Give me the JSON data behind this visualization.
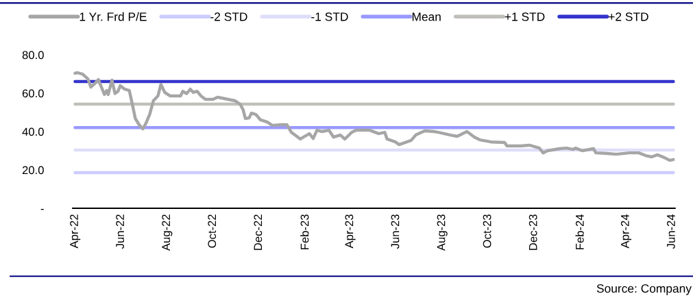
{
  "chart_data": {
    "type": "line",
    "series": [
      {
        "name": "1 Yr. Frd P/E",
        "color": "#a6a6a6",
        "x": [
          "2022-04-01",
          "2022-04-04",
          "2022-04-11",
          "2022-04-18",
          "2022-04-22",
          "2022-04-26",
          "2022-05-02",
          "2022-05-06",
          "2022-05-10",
          "2022-05-13",
          "2022-05-15",
          "2022-05-20",
          "2022-05-24",
          "2022-05-28",
          "2022-05-31",
          "2022-06-06",
          "2022-06-12",
          "2022-06-15",
          "2022-06-20",
          "2022-06-25",
          "2022-06-30",
          "2022-07-04",
          "2022-07-09",
          "2022-07-14",
          "2022-07-20",
          "2022-07-24",
          "2022-07-29",
          "2022-08-05",
          "2022-08-13",
          "2022-08-19",
          "2022-08-22",
          "2022-08-27",
          "2022-09-01",
          "2022-09-05",
          "2022-09-10",
          "2022-09-15",
          "2022-09-21",
          "2022-10-01",
          "2022-10-07",
          "2022-10-12",
          "2022-10-21",
          "2022-10-30",
          "2022-11-06",
          "2022-11-10",
          "2022-11-13",
          "2022-11-18",
          "2022-11-21",
          "2022-11-27",
          "2022-12-03",
          "2022-12-12",
          "2022-12-19",
          "2022-12-30",
          "2023-01-07",
          "2023-01-13",
          "2023-01-19",
          "2023-01-25",
          "2023-01-29",
          "2023-02-06",
          "2023-02-11",
          "2023-02-16",
          "2023-02-23",
          "2023-03-04",
          "2023-03-10",
          "2023-03-19",
          "2023-03-25",
          "2023-04-03",
          "2023-04-09",
          "2023-04-27",
          "2023-05-09",
          "2023-05-17",
          "2023-05-20",
          "2023-05-31",
          "2023-06-05",
          "2023-06-21",
          "2023-06-27",
          "2023-07-09",
          "2023-07-21",
          "2023-07-27",
          "2023-08-12",
          "2023-08-21",
          "2023-09-03",
          "2023-09-13",
          "2023-09-20",
          "2023-10-05",
          "2023-10-23",
          "2023-10-26",
          "2023-11-13",
          "2023-11-25",
          "2023-12-08",
          "2023-12-13",
          "2023-12-19",
          "2024-01-04",
          "2024-01-13",
          "2024-01-22",
          "2024-01-25",
          "2024-02-03",
          "2024-02-18",
          "2024-02-21",
          "2024-03-07",
          "2024-03-19",
          "2024-04-06",
          "2024-04-18",
          "2024-04-27",
          "2024-05-05",
          "2024-05-13",
          "2024-05-22",
          "2024-05-29",
          "2024-06-03"
        ],
        "values": [
          70.4,
          70.7,
          70.0,
          67.5,
          63.2,
          64.6,
          67.1,
          63.2,
          59.3,
          61.4,
          59.3,
          66.8,
          59.8,
          61.0,
          63.9,
          62.1,
          61.4,
          56.1,
          46.8,
          43.6,
          41.4,
          44.3,
          48.9,
          56.1,
          58.6,
          64.6,
          60.4,
          58.6,
          58.6,
          58.6,
          61.0,
          59.8,
          62.1,
          60.4,
          61.0,
          58.6,
          56.8,
          56.8,
          57.9,
          57.5,
          56.8,
          56.1,
          54.3,
          51.4,
          46.8,
          47.1,
          49.6,
          48.9,
          46.1,
          45.0,
          43.2,
          43.6,
          43.6,
          39.6,
          37.9,
          36.1,
          37.1,
          38.9,
          36.4,
          40.7,
          40.0,
          40.7,
          37.1,
          38.2,
          36.1,
          39.6,
          40.7,
          40.7,
          38.9,
          39.6,
          36.1,
          34.6,
          33.2,
          35.4,
          38.2,
          40.4,
          40.0,
          39.6,
          38.2,
          37.5,
          40.0,
          37.1,
          35.7,
          34.6,
          34.3,
          32.5,
          32.5,
          32.9,
          31.4,
          28.9,
          30.0,
          31.1,
          31.4,
          30.7,
          31.4,
          30.0,
          31.1,
          28.9,
          28.6,
          28.2,
          28.9,
          28.9,
          27.5,
          26.8,
          27.9,
          26.4,
          25.0,
          25.4
        ]
      },
      {
        "name": "-2 STD",
        "color": "#ccccff",
        "x": [
          "2022-04-01",
          "2024-06-03"
        ],
        "values": [
          18.6,
          18.6
        ]
      },
      {
        "name": "-1 STD",
        "color": "#dedefa",
        "x": [
          "2022-04-01",
          "2024-06-03"
        ],
        "values": [
          30.4,
          30.4
        ]
      },
      {
        "name": "Mean",
        "color": "#9999ff",
        "x": [
          "2022-04-01",
          "2024-06-03"
        ],
        "values": [
          42.1,
          42.1
        ]
      },
      {
        "name": "+1 STD",
        "color": "#c0bfba",
        "x": [
          "2022-04-01",
          "2024-06-03"
        ],
        "values": [
          54.3,
          54.3
        ]
      },
      {
        "name": "+2 STD",
        "color": "#3333cc",
        "x": [
          "2022-04-01",
          "2024-06-03"
        ],
        "values": [
          66.1,
          66.1
        ]
      }
    ],
    "xlim": [
      "2022-03-29",
      "2024-06-05"
    ],
    "xticks": [
      {
        "value": "2022-04-01",
        "label": "Apr-22"
      },
      {
        "value": "2022-06-01",
        "label": "Jun-22"
      },
      {
        "value": "2022-08-01",
        "label": "Aug-22"
      },
      {
        "value": "2022-10-01",
        "label": "Oct-22"
      },
      {
        "value": "2022-12-01",
        "label": "Dec-22"
      },
      {
        "value": "2023-02-01",
        "label": "Feb-23"
      },
      {
        "value": "2023-04-01",
        "label": "Apr-23"
      },
      {
        "value": "2023-06-01",
        "label": "Jun-23"
      },
      {
        "value": "2023-08-01",
        "label": "Aug-23"
      },
      {
        "value": "2023-10-01",
        "label": "Oct-23"
      },
      {
        "value": "2023-12-01",
        "label": "Dec-23"
      },
      {
        "value": "2024-02-01",
        "label": "Feb-24"
      },
      {
        "value": "2024-04-01",
        "label": "Apr-24"
      },
      {
        "value": "2024-06-01",
        "label": "Jun-24"
      }
    ],
    "ylim": [
      0,
      80
    ],
    "yticks": [
      {
        "value": 0,
        "label": "-"
      },
      {
        "value": 20,
        "label": "20.0"
      },
      {
        "value": 40,
        "label": "40.0"
      },
      {
        "value": 60,
        "label": "60.0"
      },
      {
        "value": 80,
        "label": "80.0"
      }
    ],
    "grid": false,
    "legend": "top",
    "annotations": [
      "Source: Company"
    ]
  }
}
